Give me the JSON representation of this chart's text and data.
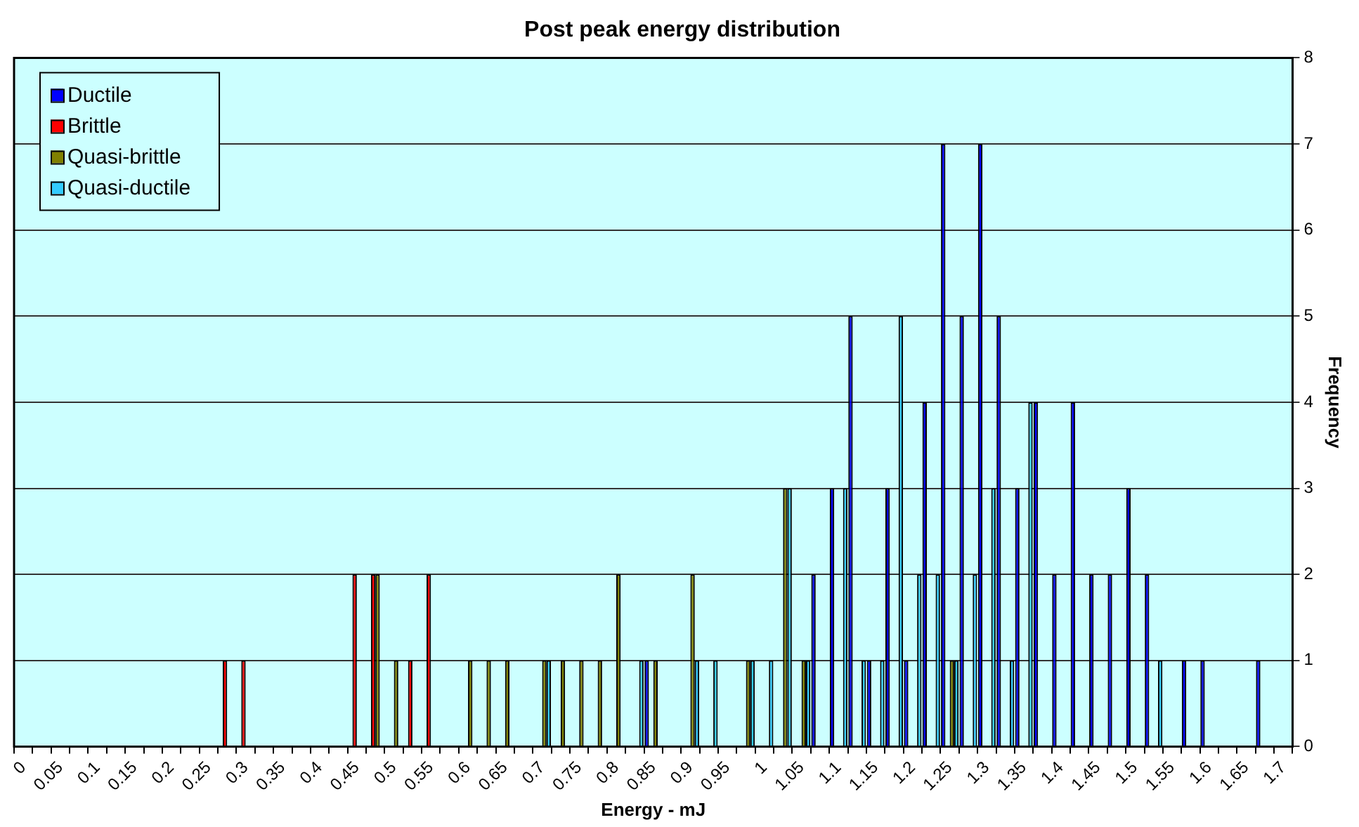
{
  "chart_data": {
    "type": "bar",
    "title": "Post peak energy distribution",
    "xlabel": "Energy - mJ",
    "ylabel": "Frequency",
    "categories": [
      "0",
      null,
      "0.05",
      null,
      "0.1",
      null,
      "0.15",
      null,
      "0.2",
      null,
      "0.25",
      null,
      "0.3",
      null,
      "0.35",
      null,
      "0.4",
      null,
      "0.45",
      null,
      "0.5",
      null,
      "0.55",
      null,
      "0.6",
      null,
      "0.65",
      null,
      "0.7",
      null,
      "0.75",
      null,
      "0.8",
      null,
      "0.85",
      null,
      "0.9",
      null,
      "0.95",
      null,
      "1",
      null,
      "1.05",
      null,
      "1.1",
      null,
      "1.15",
      null,
      "1.2",
      null,
      "1.25",
      null,
      "1.3",
      null,
      "1.35",
      null,
      "1.4",
      null,
      "1.45",
      null,
      "1.5",
      null,
      "1.55",
      null,
      "1.6",
      null,
      "1.65",
      null,
      "1.7"
    ],
    "series": [
      {
        "name": "Ductile",
        "color": "#0000ff",
        "values": [
          0,
          0,
          0,
          0,
          0,
          0,
          0,
          0,
          0,
          0,
          0,
          0,
          0,
          0,
          0,
          0,
          0,
          0,
          0,
          0,
          0,
          0,
          0,
          0,
          0,
          0,
          0,
          0,
          0,
          0,
          0,
          0,
          0,
          0,
          1,
          0,
          0,
          0,
          0,
          0,
          0,
          0,
          0,
          2,
          3,
          5,
          1,
          3,
          1,
          4,
          7,
          5,
          7,
          5,
          3,
          4,
          2,
          4,
          2,
          2,
          3,
          2,
          0,
          1,
          1,
          0,
          0,
          1,
          0
        ]
      },
      {
        "name": "Brittle",
        "color": "#ff0000",
        "values": [
          0,
          0,
          0,
          0,
          0,
          0,
          0,
          0,
          0,
          0,
          0,
          1,
          1,
          0,
          0,
          0,
          0,
          0,
          2,
          2,
          0,
          1,
          2,
          0,
          0,
          0,
          0,
          0,
          0,
          0,
          0,
          0,
          0,
          0,
          0,
          0,
          0,
          0,
          0,
          0,
          0,
          0,
          0,
          0,
          0,
          0,
          0,
          0,
          0,
          0,
          0,
          0,
          0,
          0,
          0,
          0,
          0,
          0,
          0,
          0,
          0,
          0,
          0,
          0,
          0,
          0,
          0,
          0,
          0
        ]
      },
      {
        "name": "Quasi-brittle",
        "color": "#808000",
        "values": [
          0,
          0,
          0,
          0,
          0,
          0,
          0,
          0,
          0,
          0,
          0,
          0,
          0,
          0,
          0,
          0,
          0,
          0,
          0,
          2,
          1,
          0,
          0,
          0,
          1,
          1,
          1,
          0,
          1,
          1,
          1,
          1,
          2,
          0,
          1,
          0,
          2,
          0,
          0,
          1,
          0,
          3,
          1,
          0,
          0,
          0,
          0,
          0,
          0,
          0,
          1,
          0,
          0,
          0,
          0,
          0,
          0,
          0,
          0,
          0,
          0,
          0,
          0,
          0,
          0,
          0,
          0,
          0,
          0
        ]
      },
      {
        "name": "Quasi-ductile",
        "color": "#33ccff",
        "values": [
          0,
          0,
          0,
          0,
          0,
          0,
          0,
          0,
          0,
          0,
          0,
          0,
          0,
          0,
          0,
          0,
          0,
          0,
          0,
          0,
          0,
          0,
          0,
          0,
          0,
          0,
          0,
          0,
          1,
          0,
          0,
          0,
          0,
          1,
          0,
          0,
          1,
          1,
          0,
          1,
          1,
          3,
          1,
          0,
          3,
          1,
          1,
          5,
          2,
          2,
          1,
          2,
          3,
          1,
          4,
          0,
          0,
          0,
          0,
          0,
          0,
          1,
          0,
          0,
          0,
          0,
          0,
          0,
          0
        ]
      }
    ],
    "ylim": [
      0,
      8
    ],
    "yticks": [
      0,
      1,
      2,
      3,
      4,
      5,
      6,
      7,
      8
    ],
    "grid": "y",
    "legend": "top left"
  }
}
